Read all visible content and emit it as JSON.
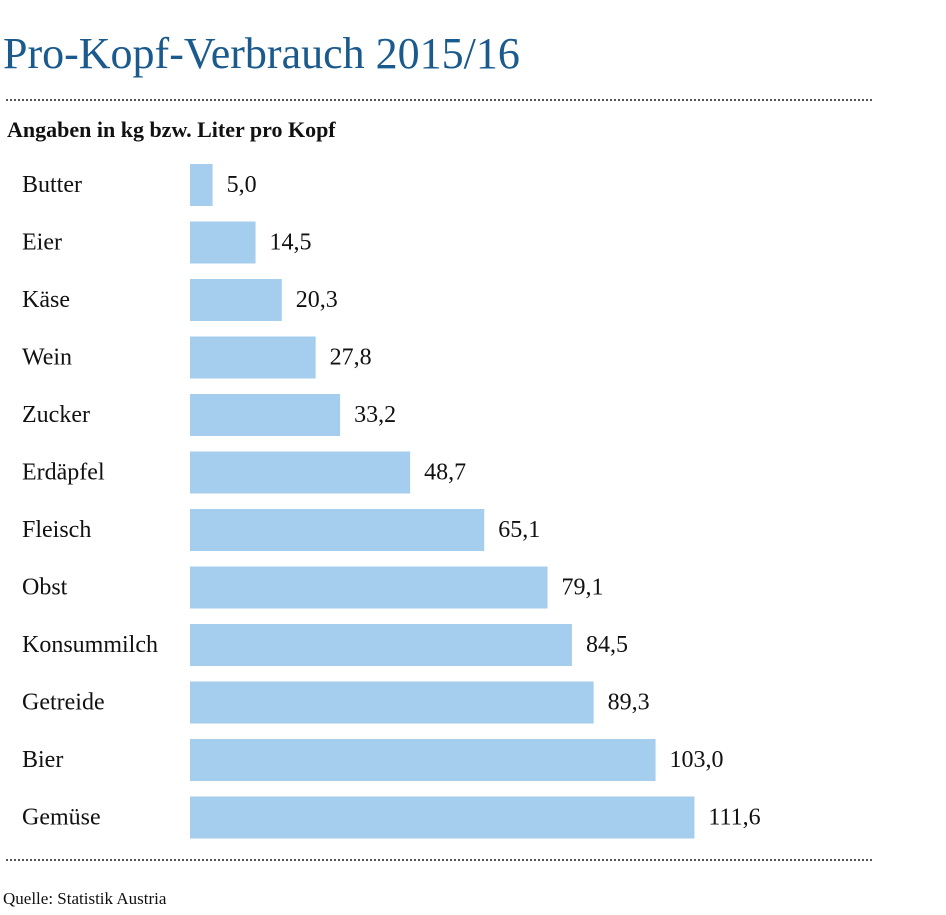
{
  "title": "Pro-Kopf-Verbrauch 2015/16",
  "subtitle": "Angaben in kg bzw. Liter pro Kopf",
  "source": "Quelle: Statistik Austria",
  "colors": {
    "bar": "#a4cdee",
    "title": "#1a5a8c",
    "text": "#111111"
  },
  "chart_data": {
    "type": "bar",
    "orientation": "horizontal",
    "categories": [
      "Butter",
      "Eier",
      "Käse",
      "Wein",
      "Zucker",
      "Erdäpfel",
      "Fleisch",
      "Obst",
      "Konsummilch",
      "Getreide",
      "Bier",
      "Gemüse"
    ],
    "values": [
      5.0,
      14.5,
      20.3,
      27.8,
      33.2,
      48.7,
      65.1,
      79.1,
      84.5,
      89.3,
      103.0,
      111.6
    ],
    "value_labels": [
      "5,0",
      "14,5",
      "20,3",
      "27,8",
      "33,2",
      "48,7",
      "65,1",
      "79,1",
      "84,5",
      "89,3",
      "103,0",
      "111,6"
    ],
    "title": "Pro-Kopf-Verbrauch 2015/16",
    "subtitle": "Angaben in kg bzw. Liter pro Kopf",
    "xlabel": "",
    "ylabel": "",
    "grid": false,
    "legend": "none"
  }
}
